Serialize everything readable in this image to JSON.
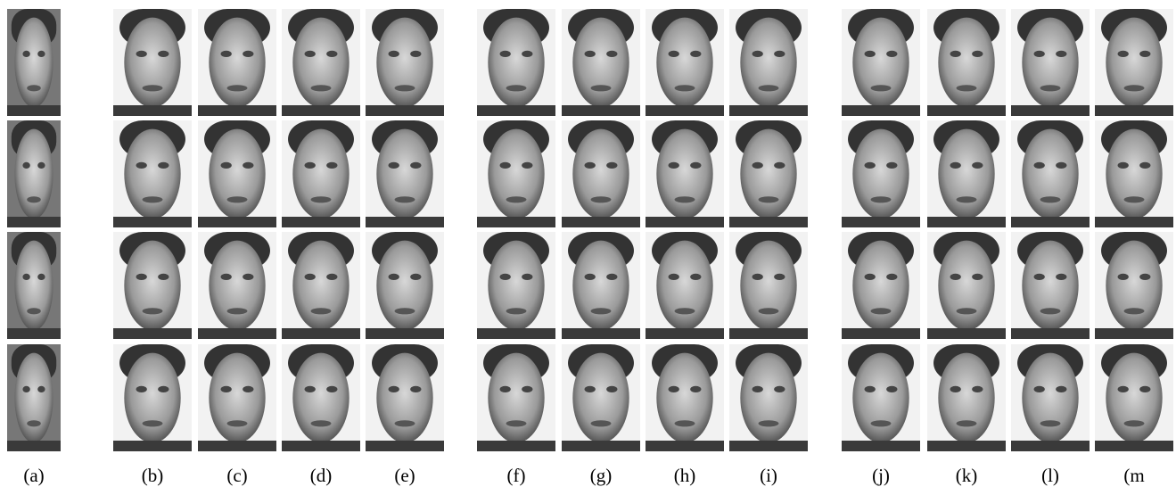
{
  "figure": {
    "labels": [
      "(a)",
      "(b)",
      "(c)",
      "(d)",
      "(e)",
      "(f)",
      "(g)",
      "(h)",
      "(i)",
      "(j)",
      "(k)",
      "(l)",
      "(m"
    ]
  }
}
